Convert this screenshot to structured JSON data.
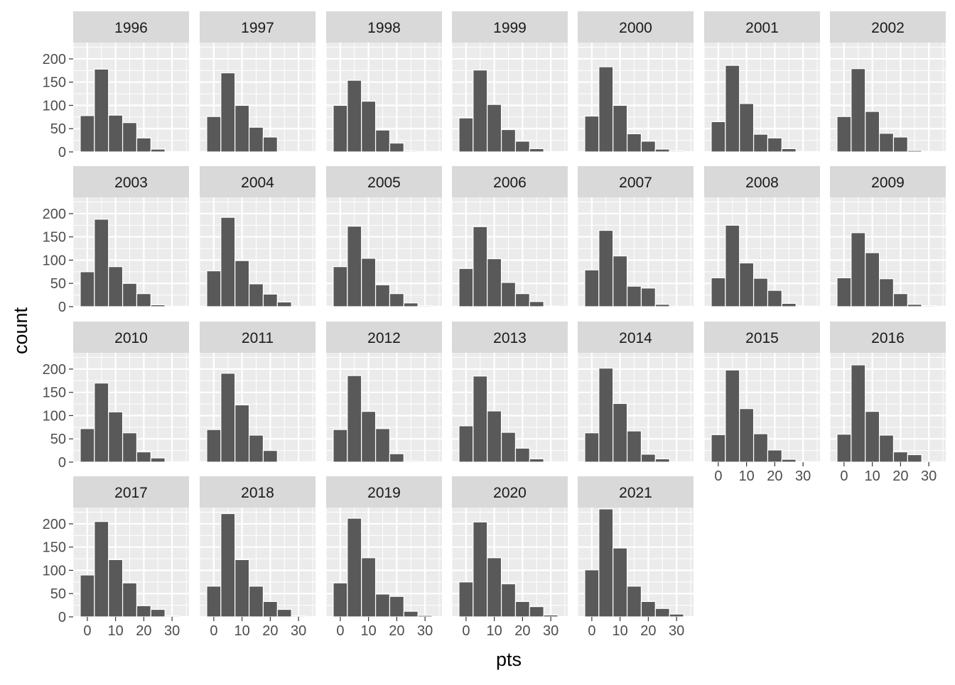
{
  "chart_data": {
    "type": "bar",
    "xlabel": "pts",
    "ylabel": "count",
    "xlim": [
      -5,
      36
    ],
    "ylim": [
      0,
      235
    ],
    "x_ticks": [
      0,
      10,
      20,
      30
    ],
    "y_ticks": [
      0,
      50,
      100,
      150,
      200
    ],
    "bin_centers": [
      0,
      5,
      10,
      15,
      20,
      25,
      30,
      35
    ],
    "bin_width": 5,
    "grid": true,
    "colors": {
      "bar": "#595959",
      "bar_outline": "#ffffff",
      "panel": "#ebebeb",
      "grid": "#ffffff",
      "strip": "#d9d9d9",
      "text": "#4d4d4d"
    },
    "facets": [
      {
        "label": "1996",
        "values": [
          78,
          178,
          79,
          63,
          30,
          6,
          0,
          0
        ]
      },
      {
        "label": "1997",
        "values": [
          76,
          170,
          100,
          53,
          32,
          0,
          0,
          0
        ]
      },
      {
        "label": "1998",
        "values": [
          100,
          154,
          109,
          47,
          19,
          2,
          0,
          0
        ]
      },
      {
        "label": "1999",
        "values": [
          73,
          176,
          102,
          48,
          23,
          7,
          0,
          0
        ]
      },
      {
        "label": "2000",
        "values": [
          77,
          183,
          100,
          39,
          23,
          6,
          2,
          0
        ]
      },
      {
        "label": "2001",
        "values": [
          65,
          186,
          104,
          38,
          30,
          7,
          0,
          0
        ]
      },
      {
        "label": "2002",
        "values": [
          76,
          179,
          87,
          40,
          32,
          3,
          1,
          0
        ]
      },
      {
        "label": "2003",
        "values": [
          75,
          188,
          86,
          50,
          28,
          4,
          0,
          0
        ]
      },
      {
        "label": "2004",
        "values": [
          77,
          192,
          99,
          49,
          27,
          10,
          0,
          0
        ]
      },
      {
        "label": "2005",
        "values": [
          86,
          173,
          104,
          47,
          28,
          8,
          2,
          0
        ]
      },
      {
        "label": "2006",
        "values": [
          82,
          172,
          103,
          52,
          28,
          11,
          1,
          0
        ]
      },
      {
        "label": "2007",
        "values": [
          79,
          164,
          109,
          44,
          40,
          5,
          0,
          0
        ]
      },
      {
        "label": "2008",
        "values": [
          62,
          175,
          94,
          61,
          35,
          7,
          1,
          0
        ]
      },
      {
        "label": "2009",
        "values": [
          62,
          159,
          116,
          60,
          28,
          5,
          2,
          0
        ]
      },
      {
        "label": "2010",
        "values": [
          72,
          170,
          108,
          63,
          22,
          9,
          0,
          0
        ]
      },
      {
        "label": "2011",
        "values": [
          70,
          191,
          123,
          58,
          25,
          1,
          0,
          0
        ]
      },
      {
        "label": "2012",
        "values": [
          70,
          186,
          109,
          72,
          18,
          2,
          0,
          0
        ]
      },
      {
        "label": "2013",
        "values": [
          78,
          185,
          110,
          64,
          30,
          7,
          0,
          0
        ]
      },
      {
        "label": "2014",
        "values": [
          63,
          202,
          126,
          67,
          17,
          7,
          0,
          0
        ]
      },
      {
        "label": "2015",
        "values": [
          59,
          198,
          115,
          61,
          26,
          6,
          1,
          0
        ]
      },
      {
        "label": "2016",
        "values": [
          60,
          209,
          109,
          58,
          22,
          16,
          2,
          0
        ]
      },
      {
        "label": "2017",
        "values": [
          90,
          205,
          123,
          73,
          24,
          16,
          2,
          0
        ]
      },
      {
        "label": "2018",
        "values": [
          66,
          222,
          123,
          66,
          33,
          16,
          2,
          0
        ]
      },
      {
        "label": "2019",
        "values": [
          73,
          212,
          127,
          49,
          44,
          12,
          3,
          0
        ]
      },
      {
        "label": "2020",
        "values": [
          75,
          204,
          127,
          71,
          33,
          22,
          4,
          0
        ]
      },
      {
        "label": "2021",
        "values": [
          101,
          232,
          148,
          66,
          33,
          18,
          6,
          0
        ]
      }
    ]
  }
}
